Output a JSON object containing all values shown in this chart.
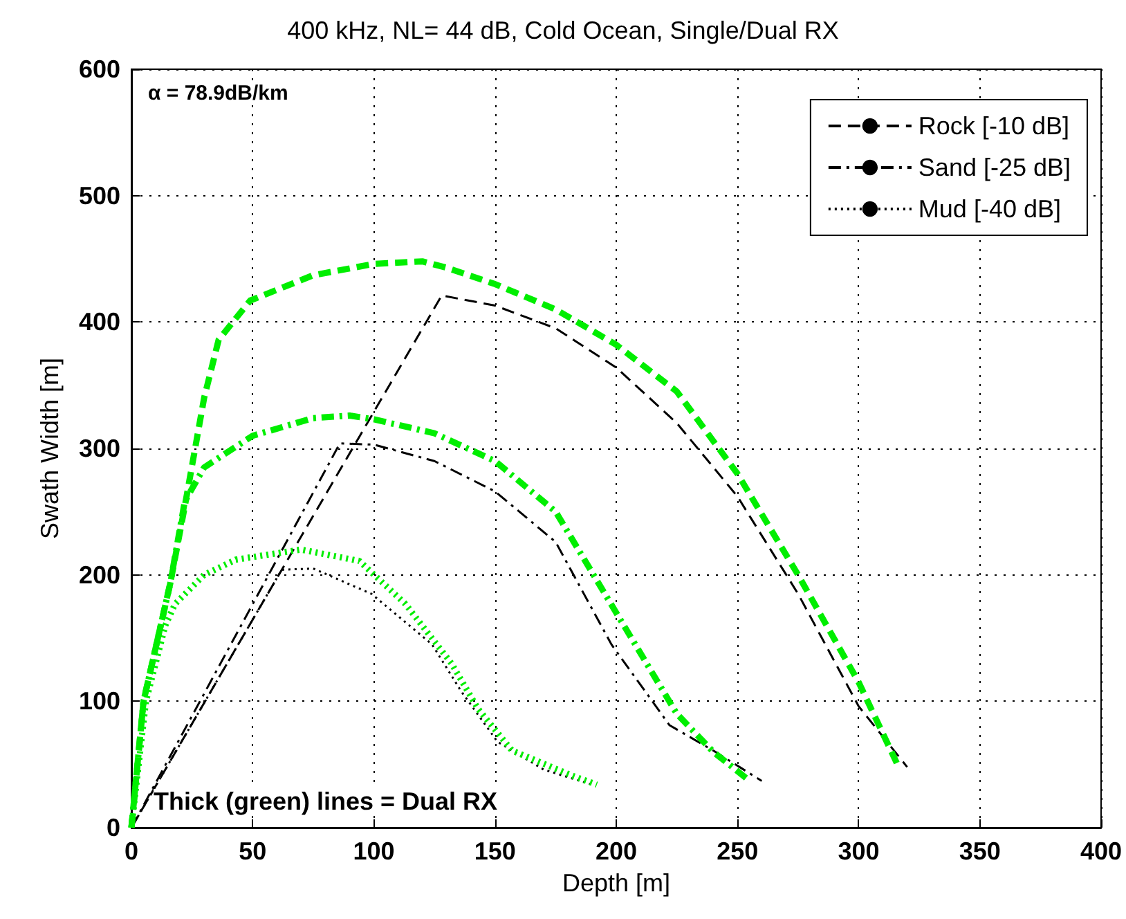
{
  "chart_data": {
    "type": "line",
    "title": "400 kHz, NL= 44 dB, Cold Ocean, Single/Dual RX",
    "xlabel": "Depth [m]",
    "ylabel": "Swath Width [m]",
    "annotations": [
      "α = 78.9dB/km",
      "Thick (green) lines = Dual RX"
    ],
    "xlim": [
      0,
      400
    ],
    "xticks": [
      0,
      50,
      100,
      150,
      200,
      250,
      300,
      350,
      400
    ],
    "ylim": [
      0,
      600
    ],
    "yticks": [
      0,
      100,
      200,
      300,
      400,
      500,
      600
    ],
    "grid": true,
    "legend": "top right",
    "marker": "none",
    "series": [
      {
        "name": "Rock [-10 dB]",
        "color": "#000000",
        "line_style": "dashed",
        "x": [
          0,
          128,
          150,
          175,
          200,
          225,
          250,
          275,
          300,
          320
        ],
        "values": [
          0,
          421,
          413,
          395,
          364,
          320,
          262,
          185,
          96,
          48
        ]
      },
      {
        "name": "Sand [-25 dB]",
        "color": "#000000",
        "line_style": "dashdot",
        "x": [
          0,
          86,
          100,
          125,
          150,
          175,
          198,
          222,
          240,
          260
        ],
        "values": [
          0,
          304,
          303,
          290,
          266,
          226,
          145,
          81,
          61,
          37
        ]
      },
      {
        "name": "Mud [-40 dB]",
        "color": "#000000",
        "line_style": "dotted",
        "x": [
          0,
          62,
          75,
          99,
          124,
          136,
          151,
          170,
          190
        ],
        "values": [
          0,
          204,
          205,
          185,
          145,
          108,
          68,
          46,
          34
        ]
      },
      {
        "color": "#00ee00",
        "line_style": "dashed",
        "x": [
          0,
          5,
          16,
          22,
          30,
          36,
          49,
          75,
          100,
          120,
          130,
          150,
          175,
          200,
          225,
          250,
          275,
          300,
          316
        ],
        "values": [
          0,
          100,
          193,
          254,
          340,
          386,
          417,
          437,
          446,
          448,
          443,
          430,
          410,
          382,
          345,
          280,
          200,
          115,
          50
        ]
      },
      {
        "color": "#00ee00",
        "line_style": "dashdot",
        "x": [
          0,
          5,
          16,
          22,
          30,
          50,
          75,
          90,
          100,
          125,
          150,
          175,
          200,
          225,
          240,
          255
        ],
        "values": [
          0,
          100,
          193,
          258,
          285,
          310,
          324,
          326,
          323,
          312,
          290,
          250,
          170,
          90,
          60,
          37
        ]
      },
      {
        "color": "#00ee00",
        "line_style": "dotted",
        "x": [
          0,
          6,
          14,
          18,
          30,
          43,
          70,
          94,
          113,
          132,
          143,
          157,
          182,
          192
        ],
        "values": [
          0,
          100,
          160,
          177,
          200,
          212,
          220,
          211,
          177,
          130,
          94,
          61,
          41,
          34
        ]
      }
    ]
  }
}
